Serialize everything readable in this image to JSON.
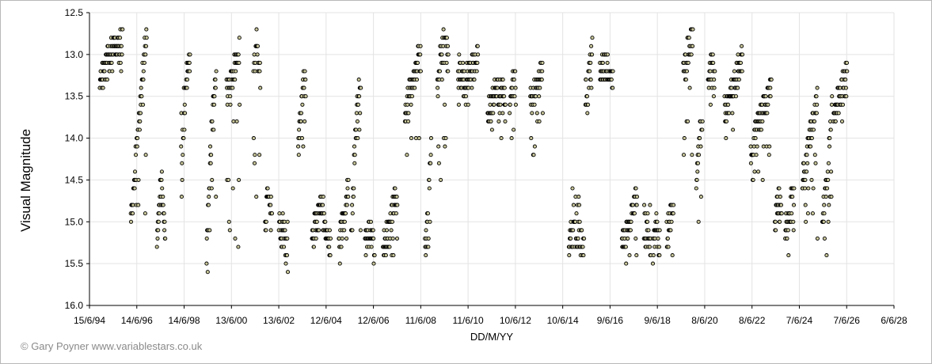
{
  "chart_data": {
    "type": "scatter",
    "title": "",
    "xlabel": "DD/M/YY",
    "ylabel": "Visual Magnitude",
    "y_inverted": true,
    "ylim": [
      12.5,
      16.0
    ],
    "yticks": [
      "12.5",
      "13.0",
      "13.5",
      "14.0",
      "14.5",
      "15.0",
      "15.5",
      "16.0"
    ],
    "xlim_days": [
      0,
      11680
    ],
    "xticks": [
      "15/6/94",
      "14/6/96",
      "14/6/98",
      "13/6/00",
      "13/6/02",
      "12/6/04",
      "12/6/06",
      "11/6/08",
      "11/6/10",
      "10/6/12",
      "10/6/14",
      "9/6/16",
      "9/6/18",
      "8/6/20",
      "8/6/22",
      "7/6/24",
      "7/6/26",
      "6/6/28"
    ],
    "grid": true,
    "legend": "none",
    "marker": {
      "shape": "circle",
      "fill": "#c9c79a",
      "stroke": "#000000"
    },
    "clusters": [
      [
        150,
        480,
        13.3,
        13.0,
        12.8,
        13.3
      ],
      [
        600,
        830,
        15.0,
        13.8,
        12.7,
        14.9
      ],
      [
        980,
        1100,
        15.2,
        14.4,
        15.3,
        14.8
      ],
      [
        1330,
        1460,
        14.8,
        13.4,
        12.9,
        13.3
      ],
      [
        1700,
        1840,
        15.2,
        14.0,
        13.2,
        15.6
      ],
      [
        1990,
        2180,
        13.5,
        13.2,
        12.9,
        15.3
      ],
      [
        2380,
        2480,
        13.2,
        12.8,
        13.3,
        14.8
      ],
      [
        2550,
        2650,
        15.0,
        14.7,
        15.1,
        14.5
      ],
      [
        2750,
        2880,
        15.3,
        15.1,
        15.5,
        14.8
      ],
      [
        3030,
        3140,
        14.1,
        13.5,
        13.2,
        14.3
      ],
      [
        3230,
        3500,
        15.2,
        14.8,
        15.3,
        15.2
      ],
      [
        3620,
        3760,
        15.2,
        15.0,
        14.6,
        15.5
      ],
      [
        3800,
        3940,
        15.1,
        13.8,
        13.3,
        15.3
      ],
      [
        4000,
        4140,
        15.3,
        15.1,
        15.4,
        15.2
      ],
      [
        4260,
        4470,
        15.3,
        15.0,
        14.7,
        15.4
      ],
      [
        4580,
        4810,
        13.7,
        13.3,
        13.0,
        14.3
      ],
      [
        4870,
        4960,
        15.3,
        14.8,
        14.2,
        15.4
      ],
      [
        5050,
        5210,
        13.2,
        12.9,
        13.0,
        14.5
      ],
      [
        5350,
        5640,
        13.2,
        13.3,
        13.0,
        13.6
      ],
      [
        5780,
        6040,
        13.7,
        13.4,
        13.5,
        14.2
      ],
      [
        6100,
        6190,
        13.6,
        13.4,
        13.3,
        14.4
      ],
      [
        6400,
        6580,
        13.6,
        13.4,
        13.2,
        14.3
      ],
      [
        6960,
        7180,
        15.2,
        15.1,
        15.3,
        14.6
      ],
      [
        7200,
        7300,
        13.5,
        13.3,
        12.9,
        13.7
      ],
      [
        7410,
        7600,
        13.2,
        13.1,
        13.4,
        13.3
      ],
      [
        7730,
        7950,
        15.2,
        15.0,
        14.7,
        15.5
      ],
      [
        8050,
        8150,
        15.2,
        15.1,
        15.3,
        14.8
      ],
      [
        8180,
        8280,
        15.3,
        15.0,
        15.4,
        15.1
      ],
      [
        8380,
        8480,
        15.2,
        15.0,
        14.9,
        15.5
      ],
      [
        8620,
        8760,
        13.3,
        12.9,
        12.8,
        14.2
      ],
      [
        8810,
        8900,
        14.6,
        14.0,
        13.8,
        15.1
      ],
      [
        8980,
        9080,
        13.4,
        13.1,
        13.3,
        13.6
      ],
      [
        9220,
        9480,
        13.7,
        13.4,
        13.0,
        14.0
      ],
      [
        9600,
        9900,
        14.2,
        13.7,
        13.4,
        14.5
      ],
      [
        9950,
        10050,
        15.0,
        14.8,
        14.8,
        15.2
      ],
      [
        10100,
        10230,
        15.1,
        14.9,
        14.6,
        15.5
      ],
      [
        10350,
        10570,
        14.5,
        14.0,
        13.5,
        15.2
      ],
      [
        10640,
        10780,
        15.0,
        14.5,
        13.6,
        15.4
      ],
      [
        10800,
        11000,
        13.7,
        13.5,
        13.2,
        14.1
      ]
    ]
  },
  "credit": "© Gary Poyner www.variablestars.co.uk"
}
